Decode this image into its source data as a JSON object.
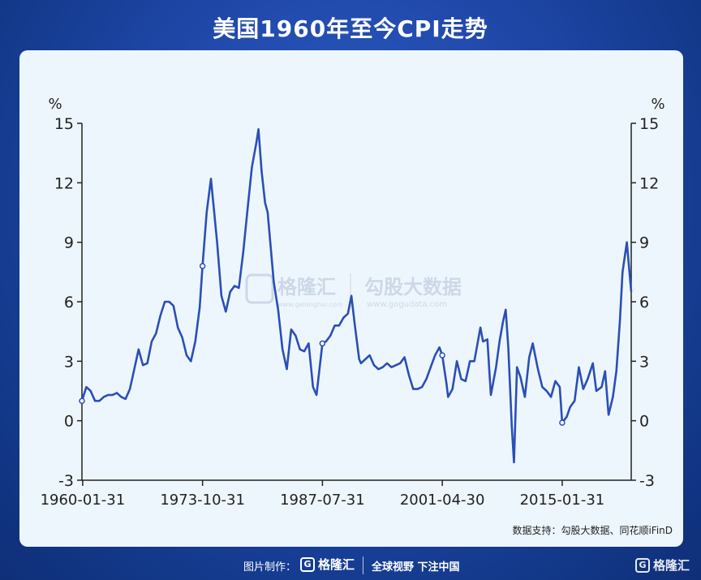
{
  "title": "美国1960年至今CPI走势",
  "source": "数据支持：勾股大数据、同花顺iFinD",
  "watermark": {
    "brand1": "格隆汇",
    "brand1_url": "www.gelonghui.com",
    "brand2": "勾股大数据",
    "brand2_url": "www.gogudata.com"
  },
  "footer": {
    "credit": "图片制作：",
    "logo_text": "格隆汇",
    "slogan": "全球视野 下注中国",
    "corner_logo": "格隆汇"
  },
  "chart_data": {
    "type": "line",
    "xlabel": "",
    "ylabel_left": "%",
    "ylabel_right": "%",
    "ylim": [
      -3,
      15
    ],
    "yticks": [
      -3,
      0,
      3,
      6,
      9,
      12,
      15
    ],
    "xticks": [
      "1960-01-31",
      "1973-10-31",
      "1987-07-31",
      "2001-04-30",
      "2015-01-31"
    ],
    "xlim": [
      1960.0,
      2023.0
    ],
    "line_color": "#2a4fb6",
    "series": [
      {
        "x": [
          1960.0,
          1960.5,
          1961.0,
          1961.5,
          1962.0,
          1962.5,
          1963.0,
          1963.5,
          1964.0,
          1964.5,
          1965.0,
          1965.5,
          1966.0,
          1966.5,
          1967.0,
          1967.5,
          1968.0,
          1968.5,
          1969.0,
          1969.5,
          1970.0,
          1970.5,
          1971.0,
          1971.5,
          1972.0,
          1972.5,
          1973.0,
          1973.5,
          1973.83,
          1974.3,
          1974.8,
          1975.5,
          1976.0,
          1976.5,
          1977.0,
          1977.5,
          1978.0,
          1978.5,
          1979.0,
          1979.5,
          1980.0,
          1980.25,
          1980.6,
          1981.0,
          1981.3,
          1981.7,
          1982.0,
          1982.5,
          1983.0,
          1983.5,
          1984.0,
          1984.5,
          1985.0,
          1985.5,
          1986.0,
          1986.5,
          1986.9,
          1987.58,
          1988.0,
          1988.5,
          1989.0,
          1989.5,
          1990.0,
          1990.5,
          1990.9,
          1991.3,
          1991.8,
          1992.0,
          1992.5,
          1993.0,
          1993.5,
          1994.0,
          1994.5,
          1995.0,
          1995.5,
          1996.0,
          1996.5,
          1997.0,
          1997.5,
          1998.0,
          1998.5,
          1999.0,
          1999.5,
          2000.0,
          2000.5,
          2001.0,
          2001.33,
          2001.8,
          2002.0,
          2002.5,
          2003.0,
          2003.5,
          2004.0,
          2004.5,
          2005.0,
          2005.7,
          2006.0,
          2006.5,
          2006.9,
          2007.5,
          2007.9,
          2008.3,
          2008.6,
          2008.9,
          2009.3,
          2009.55,
          2009.9,
          2010.3,
          2010.8,
          2011.3,
          2011.7,
          2012.3,
          2012.8,
          2013.3,
          2013.8,
          2014.3,
          2014.8,
          2015.08,
          2015.6,
          2016.0,
          2016.5,
          2017.0,
          2017.5,
          2018.0,
          2018.6,
          2019.0,
          2019.6,
          2020.0,
          2020.4,
          2020.9,
          2021.3,
          2021.7,
          2022.0,
          2022.5,
          2023.0
        ],
        "values": [
          1.0,
          1.7,
          1.5,
          1.0,
          1.0,
          1.2,
          1.3,
          1.3,
          1.4,
          1.2,
          1.1,
          1.6,
          2.6,
          3.6,
          2.8,
          2.9,
          4.0,
          4.4,
          5.3,
          6.0,
          6.0,
          5.8,
          4.7,
          4.2,
          3.3,
          3.0,
          4.0,
          5.7,
          7.8,
          10.5,
          12.2,
          9.0,
          6.3,
          5.5,
          6.5,
          6.8,
          6.7,
          8.5,
          10.7,
          12.8,
          14.0,
          14.7,
          12.6,
          11.0,
          10.5,
          8.5,
          7.0,
          5.6,
          3.6,
          2.6,
          4.6,
          4.3,
          3.6,
          3.5,
          3.9,
          1.7,
          1.3,
          3.9,
          4.0,
          4.3,
          4.8,
          4.8,
          5.2,
          5.4,
          6.3,
          4.8,
          3.1,
          2.9,
          3.1,
          3.3,
          2.8,
          2.6,
          2.7,
          2.9,
          2.7,
          2.8,
          2.9,
          3.2,
          2.3,
          1.6,
          1.6,
          1.7,
          2.1,
          2.7,
          3.3,
          3.7,
          3.3,
          1.9,
          1.2,
          1.6,
          3.0,
          2.1,
          2.0,
          3.0,
          3.0,
          4.7,
          4.0,
          4.1,
          1.3,
          2.7,
          4.0,
          5.0,
          5.6,
          3.7,
          -0.3,
          -2.1,
          2.7,
          2.2,
          1.2,
          3.2,
          3.9,
          2.6,
          1.7,
          1.5,
          1.2,
          2.0,
          1.7,
          -0.1,
          0.2,
          0.7,
          1.0,
          2.7,
          1.6,
          2.1,
          2.9,
          1.5,
          1.7,
          2.5,
          0.3,
          1.2,
          2.5,
          5.0,
          7.5,
          9.0,
          6.5
        ]
      }
    ]
  }
}
